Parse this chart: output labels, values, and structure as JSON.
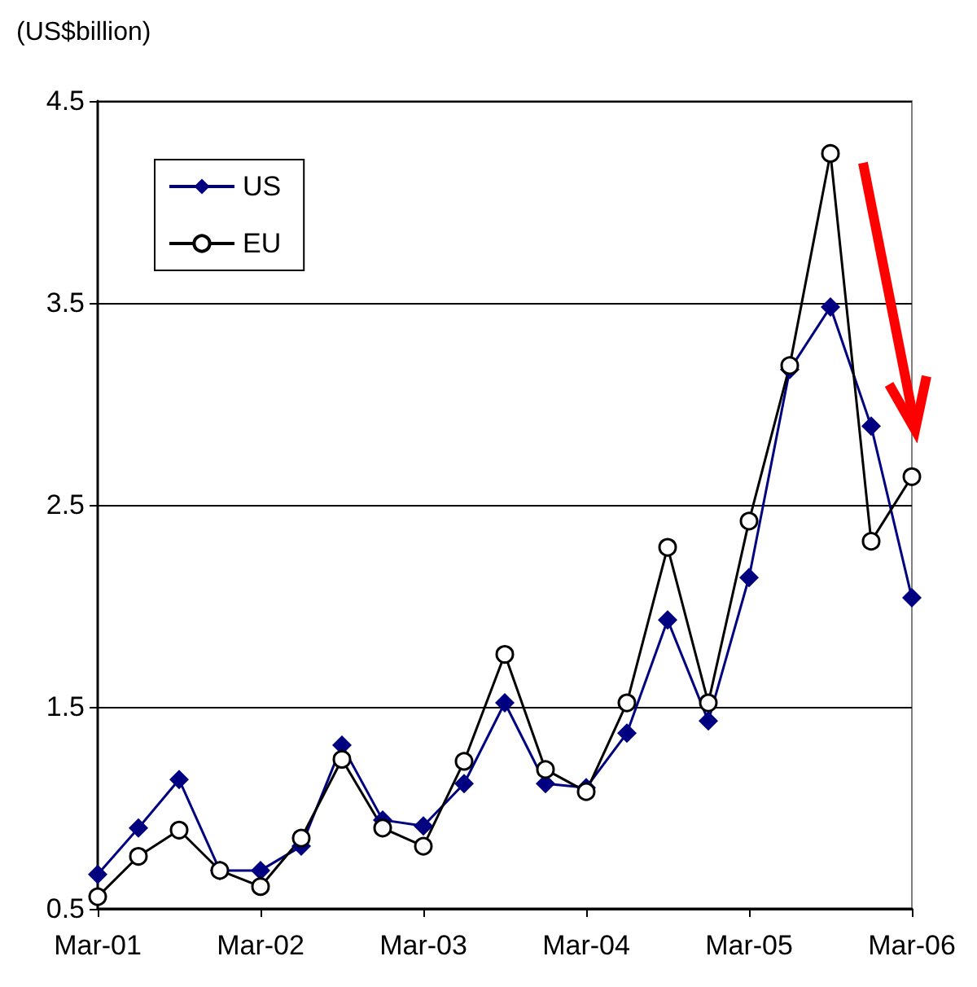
{
  "chart_data": {
    "type": "line",
    "ylabel": "(US$billion)",
    "categories": [
      "Mar-01",
      null,
      null,
      null,
      "Mar-02",
      null,
      null,
      null,
      "Mar-03",
      null,
      null,
      null,
      "Mar-04",
      null,
      null,
      null,
      "Mar-05",
      null,
      null,
      null,
      "Mar-06"
    ],
    "series": [
      {
        "name": "US",
        "color": "#000080",
        "marker": "diamond",
        "values": [
          0.67,
          0.9,
          1.14,
          0.69,
          0.69,
          0.81,
          1.31,
          0.94,
          0.91,
          1.12,
          1.52,
          1.12,
          1.1,
          1.37,
          1.93,
          1.43,
          2.14,
          3.17,
          3.48,
          2.89,
          2.04
        ]
      },
      {
        "name": "EU",
        "color": "#000000",
        "marker": "circle",
        "values": [
          0.56,
          0.76,
          0.89,
          0.69,
          0.61,
          0.85,
          1.24,
          0.9,
          0.81,
          1.23,
          1.76,
          1.19,
          1.08,
          1.52,
          2.29,
          1.52,
          2.42,
          3.19,
          4.24,
          2.32,
          2.64
        ]
      }
    ],
    "ylim": [
      0.5,
      4.5
    ],
    "yticks": [
      0.5,
      1.5,
      2.5,
      3.5,
      4.5
    ],
    "grid": "y",
    "legend": "top left"
  }
}
